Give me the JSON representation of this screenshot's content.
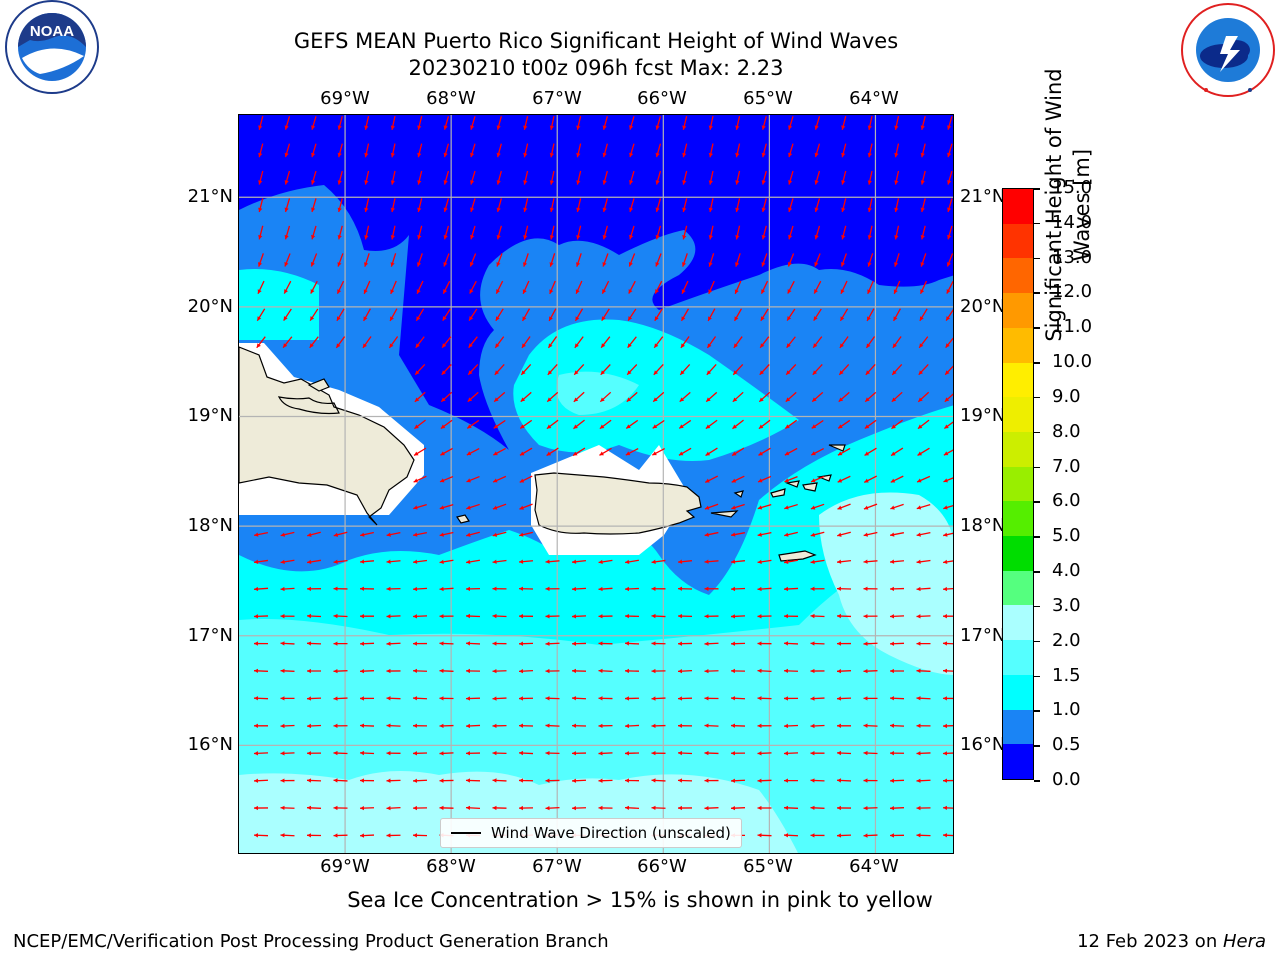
{
  "title": {
    "line1": "GEFS MEAN Puerto Rico Significant Height of Wind Waves",
    "line2": "20230210 t00z 096h fcst   Max: 2.23"
  },
  "logos": {
    "left": {
      "name": "noaa-logo",
      "text": "NOAA",
      "ring_text": "NATIONAL OCEANIC AND ATMOSPHERIC ADMINISTRATION · U.S. DEPARTMENT OF COMMERCE"
    },
    "right": {
      "name": "nws-logo",
      "ring_text": "NATIONAL WEATHER SERVICE"
    }
  },
  "map": {
    "lon_labels": [
      "69°W",
      "68°W",
      "67°W",
      "66°W",
      "65°W",
      "64°W"
    ],
    "lat_labels": [
      "21°N",
      "20°N",
      "19°N",
      "18°N",
      "17°N",
      "16°N"
    ],
    "lon_range": [
      -70.0,
      -63.25
    ],
    "lat_range": [
      15.0,
      21.75
    ],
    "grid": true,
    "colors": {
      "land": "#eeebd9",
      "land_buffer": "#ffffff",
      "arrow": "#ff0000",
      "coast": "#000000"
    }
  },
  "colorbar": {
    "title": "Significant Height of Wind Waves [m]",
    "title_line1": "Significant Height of Wind",
    "title_line2": "Waves [m]",
    "tick_labels": [
      "0.0",
      "0.5",
      "1.0",
      "1.5",
      "2.0",
      "3.0",
      "4.0",
      "5.0",
      "6.0",
      "7.0",
      "8.0",
      "9.0",
      "10.0",
      "11.0",
      "12.0",
      "13.0",
      "14.0",
      "15.0"
    ],
    "colors": [
      "#0000ff",
      "#1a84f5",
      "#00ffff",
      "#55ffff",
      "#aaffff",
      "#55ff7f",
      "#00dd00",
      "#55ee00",
      "#99ee00",
      "#ccee00",
      "#eeee00",
      "#ffee00",
      "#ffbb00",
      "#ff9900",
      "#ff6600",
      "#ff3300",
      "#ff0000"
    ]
  },
  "legend": {
    "label": "Wind Wave Direction (unscaled)"
  },
  "bottom_note": "Sea Ice Concentration > 15% is shown in pink to yellow",
  "footer": {
    "left": "NCEP/EMC/Verification Post Processing Product Generation Branch",
    "right_prefix": "12 Feb 2023 on ",
    "right_host": "Hera"
  }
}
